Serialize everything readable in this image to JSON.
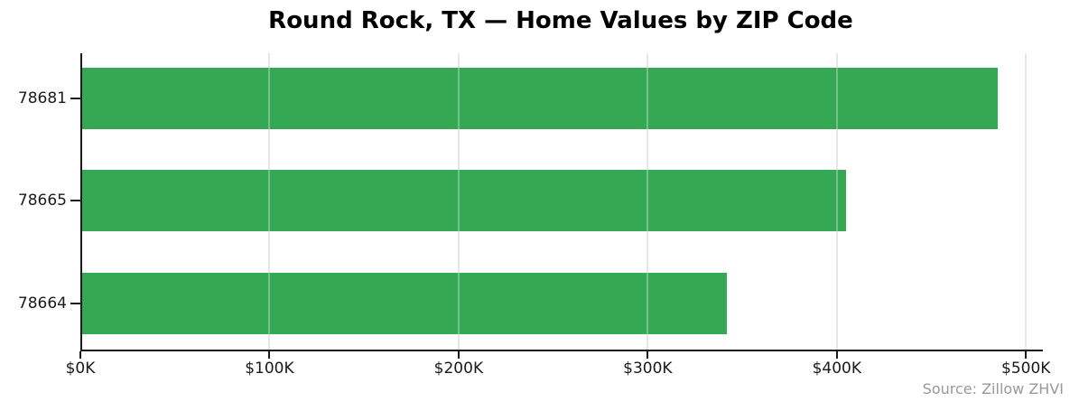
{
  "chart_data": {
    "type": "bar",
    "orientation": "horizontal",
    "title": "Round Rock, TX — Home Values by ZIP Code",
    "categories": [
      "78681",
      "78665",
      "78664"
    ],
    "values": [
      485000,
      405000,
      342000
    ],
    "x_tick_labels": [
      "$0K",
      "$100K",
      "$200K",
      "$300K",
      "$400K",
      "$500K"
    ],
    "x_tick_values": [
      0,
      100000,
      200000,
      300000,
      400000,
      500000
    ],
    "xlim": [
      0,
      508000
    ],
    "xlabel": "",
    "ylabel": "",
    "grid": "vertical",
    "legend": "none"
  },
  "source_note": "Source: Zillow ZHVI",
  "colors": {
    "bar": "#34a853",
    "grid": "#e7e7e7",
    "axis": "#1a1a1a",
    "tick_text": "#1a1a1a",
    "title_text": "#000000",
    "source_text": "#999999"
  }
}
